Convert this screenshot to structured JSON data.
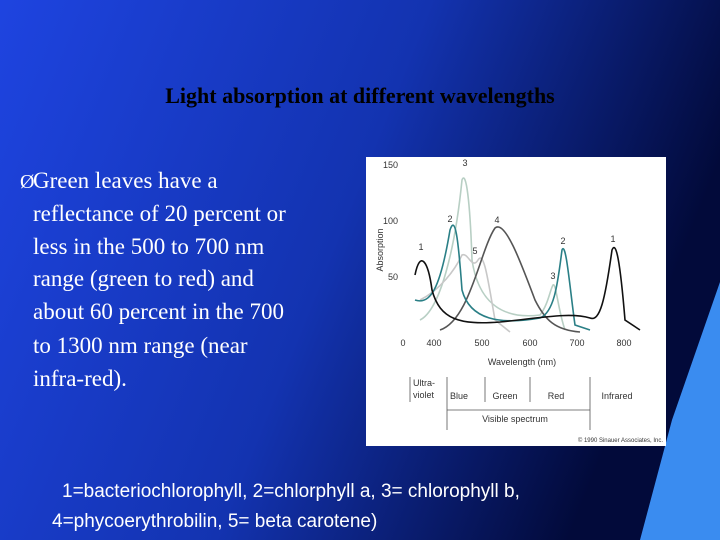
{
  "header": {
    "title": "Light absorption at different wavelengths"
  },
  "bullet": {
    "marker": "Ø",
    "lines": [
      "Green leaves have a",
      "reflectance of 20 percent or",
      "less in the 500 to 700 nm",
      "range (green to red) and",
      "about 60 percent in the 700",
      "to 1300 nm range (near",
      "infra-red)."
    ]
  },
  "figure": {
    "ylabel": "Absorption",
    "xlabel": "Wavelength (nm)",
    "yticks": [
      "150",
      "100",
      "50",
      "0"
    ],
    "xticks": [
      "400",
      "500",
      "600",
      "700",
      "800"
    ],
    "curve_labels": [
      "3",
      "2",
      "4",
      "1",
      "5",
      "2",
      "3",
      "1"
    ],
    "spectrum": {
      "uv": [
        "Ultra-",
        "violet"
      ],
      "bands": [
        "Blue",
        "Green",
        "Red",
        "Infrared"
      ],
      "visible": "Visible spectrum"
    },
    "credit": "© 1990 Sinauer Associates, Inc."
  },
  "caption": {
    "lines": [
      "1=bacteriochlorophyll, 2=chlorphyll a, 3= chlorophyll b,",
      "4=phycoerythrobilin, 5= beta carotene)"
    ]
  }
}
